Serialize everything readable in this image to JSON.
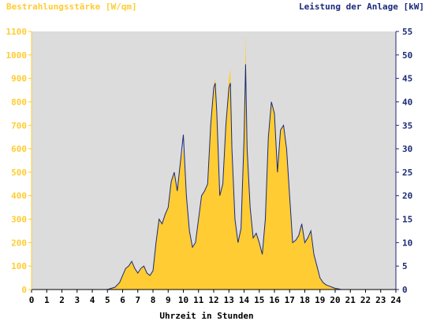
{
  "chart_data": {
    "type": "area",
    "title_left": "Bestrahlungsstärke [W/qm]",
    "title_right": "Leistung der Anlage [kW]",
    "xlabel": "Uhrzeit in Stunden",
    "x_ticks": [
      "0",
      "1",
      "2",
      "3",
      "4",
      "5",
      "6",
      "7",
      "8",
      "9",
      "10",
      "11",
      "12",
      "13",
      "14",
      "15",
      "16",
      "17",
      "18",
      "19",
      "20",
      "21",
      "22",
      "23",
      "24"
    ],
    "y_left_ticks": [
      "0",
      "100",
      "200",
      "300",
      "400",
      "500",
      "600",
      "700",
      "800",
      "900",
      "1000",
      "1100"
    ],
    "y_right_ticks": [
      "0",
      "5",
      "10",
      "15",
      "20",
      "25",
      "30",
      "35",
      "40",
      "45",
      "50",
      "55"
    ],
    "xlim": [
      0,
      24
    ],
    "ylim_left": [
      0,
      1100
    ],
    "ylim_right": [
      0,
      55
    ],
    "grid": false,
    "colors": {
      "plot_background": "#dcdcdc",
      "irradiance_fill": "#ffcc33",
      "power_line": "#1a2a7a",
      "left_axis_text": "#ffcc33",
      "right_axis_text": "#1a2a7a",
      "axis_text": "#000000"
    },
    "series": [
      {
        "name": "Bestrahlungsstärke [W/qm]",
        "axis": "left",
        "style": "area",
        "x": [
          0,
          5.0,
          5.5,
          5.8,
          6.0,
          6.2,
          6.4,
          6.6,
          6.8,
          7.0,
          7.2,
          7.4,
          7.6,
          7.8,
          8.0,
          8.2,
          8.4,
          8.6,
          8.8,
          9.0,
          9.2,
          9.4,
          9.6,
          9.8,
          10.0,
          10.2,
          10.4,
          10.6,
          10.8,
          11.0,
          11.2,
          11.4,
          11.6,
          11.8,
          12.0,
          12.1,
          12.2,
          12.4,
          12.6,
          12.8,
          13.0,
          13.1,
          13.2,
          13.4,
          13.6,
          13.8,
          14.0,
          14.1,
          14.2,
          14.4,
          14.6,
          14.8,
          15.0,
          15.2,
          15.4,
          15.6,
          15.8,
          16.0,
          16.2,
          16.4,
          16.6,
          16.8,
          17.0,
          17.2,
          17.4,
          17.6,
          17.8,
          18.0,
          18.2,
          18.4,
          18.6,
          18.8,
          19.0,
          19.2,
          19.4,
          19.6,
          19.8,
          20.0,
          20.2,
          20.4,
          24
        ],
        "values": [
          0,
          0,
          10,
          30,
          60,
          90,
          100,
          120,
          90,
          70,
          90,
          100,
          70,
          60,
          80,
          200,
          300,
          280,
          320,
          350,
          460,
          500,
          420,
          540,
          600,
          400,
          250,
          180,
          200,
          300,
          400,
          420,
          450,
          700,
          870,
          900,
          760,
          400,
          450,
          700,
          900,
          940,
          600,
          300,
          200,
          260,
          650,
          1090,
          600,
          350,
          220,
          240,
          200,
          150,
          300,
          650,
          800,
          750,
          500,
          680,
          700,
          600,
          400,
          200,
          210,
          230,
          280,
          200,
          220,
          250,
          150,
          100,
          50,
          30,
          20,
          15,
          10,
          5,
          3,
          0,
          0
        ]
      },
      {
        "name": "Leistung der Anlage [kW]",
        "axis": "right",
        "style": "line",
        "x": [
          0,
          5.0,
          5.5,
          5.8,
          6.0,
          6.2,
          6.4,
          6.6,
          6.8,
          7.0,
          7.2,
          7.4,
          7.6,
          7.8,
          8.0,
          8.2,
          8.4,
          8.6,
          8.8,
          9.0,
          9.2,
          9.4,
          9.6,
          9.8,
          10.0,
          10.2,
          10.4,
          10.6,
          10.8,
          11.0,
          11.2,
          11.4,
          11.6,
          11.8,
          12.0,
          12.1,
          12.2,
          12.4,
          12.6,
          12.8,
          13.0,
          13.1,
          13.2,
          13.4,
          13.6,
          13.8,
          14.0,
          14.1,
          14.2,
          14.4,
          14.6,
          14.8,
          15.0,
          15.2,
          15.4,
          15.6,
          15.8,
          16.0,
          16.2,
          16.4,
          16.6,
          16.8,
          17.0,
          17.2,
          17.4,
          17.6,
          17.8,
          18.0,
          18.2,
          18.4,
          18.6,
          18.8,
          19.0,
          19.2,
          19.4,
          19.6,
          19.8,
          20.0,
          20.2,
          20.4,
          24
        ],
        "values": [
          0,
          0,
          0.5,
          1.5,
          3,
          4.5,
          5,
          6,
          4.5,
          3.5,
          4.5,
          5,
          3.5,
          3,
          4,
          10,
          15,
          14,
          16,
          17.5,
          23,
          25,
          21,
          27,
          33,
          20,
          12.5,
          9,
          10,
          15,
          20,
          21,
          22.5,
          35,
          43,
          44,
          38,
          20,
          22.5,
          35,
          43,
          44,
          30,
          15,
          10,
          13,
          32.5,
          48,
          30,
          17.5,
          11,
          12,
          10,
          7.5,
          15,
          32.5,
          40,
          37.5,
          25,
          34,
          35,
          30,
          20,
          10,
          10.5,
          11.5,
          14,
          10,
          11,
          12.5,
          7.5,
          5,
          2.5,
          1.5,
          1,
          0.75,
          0.5,
          0.25,
          0.15,
          0,
          0
        ]
      }
    ]
  }
}
